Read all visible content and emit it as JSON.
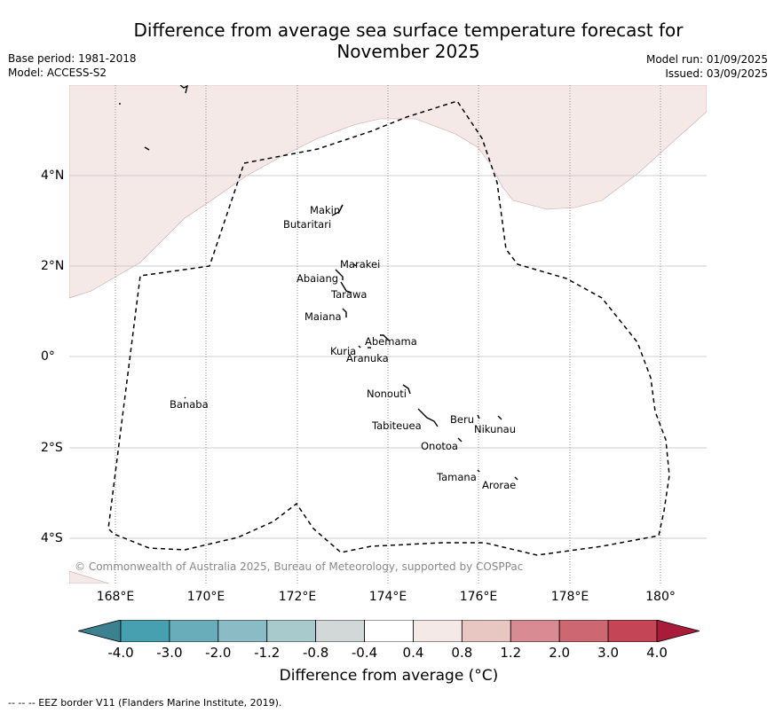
{
  "title_line1": "Difference from average sea surface temperature forecast for",
  "title_line2": "November 2025",
  "base_period": "Base period: 1981-2018",
  "model": "Model: ACCESS-S2",
  "model_run": "Model run: 01/09/2025",
  "issued": "Issued: 03/09/2025",
  "copyright": "© Commonwealth of Australia 2025, Bureau of Meteorology, supported by COSPPac",
  "footer": "--  --  -- EEZ border V11 (Flanders Marine Institute, 2019).",
  "lat_labels": [
    "4°N",
    "2°N",
    "0°",
    "2°S",
    "4°S"
  ],
  "lon_labels": [
    "168°E",
    "170°E",
    "172°E",
    "174°E",
    "176°E",
    "178°E",
    "180°"
  ],
  "islands": [
    "Makin",
    "Butaritari",
    "Marakei",
    "Abaiang",
    "Tarawa",
    "Maiana",
    "Abemama",
    "Kuria",
    "Aranuka",
    "Banaba",
    "Nonouti",
    "Beru",
    "Nikunau",
    "Tabiteuea",
    "Onotoa",
    "Tamana",
    "Arorae"
  ],
  "colorbar": {
    "title": "Difference from average (°C)",
    "ticks": [
      "-4.0",
      "-3.0",
      "-2.0",
      "-1.2",
      "-0.8",
      "-0.4",
      "0.4",
      "0.8",
      "1.2",
      "2.0",
      "3.0",
      "4.0"
    ],
    "colors": [
      "#3c8190",
      "#46a0b0",
      "#6aadba",
      "#8bbcc5",
      "#a8cacd",
      "#d2d8d8",
      "#ffffff",
      "#f5e9e7",
      "#e8c6c2",
      "#d98b93",
      "#cd6872",
      "#c44555",
      "#a81c3a"
    ]
  }
}
